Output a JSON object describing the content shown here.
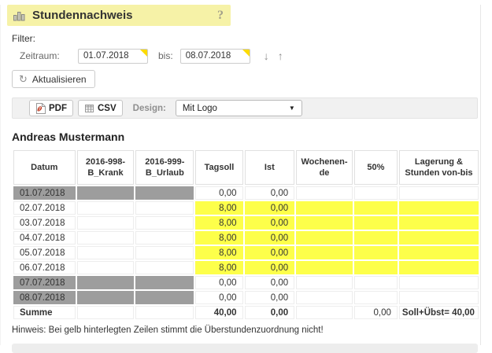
{
  "header": {
    "title": "Stundennachweis"
  },
  "icons": {
    "help": "?",
    "refresh": "↻",
    "period_back": "↓",
    "period_forward": "↑",
    "dropdown_caret": "▼"
  },
  "filter": {
    "label": "Filter:",
    "zeitraum_label": "Zeitraum:",
    "from_value": "01.07.2018",
    "bis_label": "bis:",
    "to_value": "08.07.2018",
    "refresh_label": "Aktualisieren"
  },
  "toolbar": {
    "pdf_label": "PDF",
    "csv_label": "CSV",
    "design_label": "Design:",
    "design_value": "Mit Logo"
  },
  "employee_name": "Andreas Mustermann",
  "table": {
    "columns": [
      "Datum",
      "2016-998-B_Krank",
      "2016-999-B_Urlaub",
      "Tagsoll",
      "Ist",
      "Wochenen-de",
      "50%",
      "Lagerung & Stunden von-bis"
    ],
    "rows": [
      {
        "datum": "01.07.2018",
        "krank": "",
        "urlaub": "",
        "tagsoll": "0,00",
        "ist": "0,00",
        "wochenende": "",
        "fifty": "",
        "lagerung": "",
        "weekend": true,
        "highlight": false
      },
      {
        "datum": "02.07.2018",
        "krank": "",
        "urlaub": "",
        "tagsoll": "8,00",
        "ist": "0,00",
        "wochenende": "",
        "fifty": "",
        "lagerung": "",
        "weekend": false,
        "highlight": true
      },
      {
        "datum": "03.07.2018",
        "krank": "",
        "urlaub": "",
        "tagsoll": "8,00",
        "ist": "0,00",
        "wochenende": "",
        "fifty": "",
        "lagerung": "",
        "weekend": false,
        "highlight": true
      },
      {
        "datum": "04.07.2018",
        "krank": "",
        "urlaub": "",
        "tagsoll": "8,00",
        "ist": "0,00",
        "wochenende": "",
        "fifty": "",
        "lagerung": "",
        "weekend": false,
        "highlight": true
      },
      {
        "datum": "05.07.2018",
        "krank": "",
        "urlaub": "",
        "tagsoll": "8,00",
        "ist": "0,00",
        "wochenende": "",
        "fifty": "",
        "lagerung": "",
        "weekend": false,
        "highlight": true
      },
      {
        "datum": "06.07.2018",
        "krank": "",
        "urlaub": "",
        "tagsoll": "8,00",
        "ist": "0,00",
        "wochenende": "",
        "fifty": "",
        "lagerung": "",
        "weekend": false,
        "highlight": true
      },
      {
        "datum": "07.07.2018",
        "krank": "",
        "urlaub": "",
        "tagsoll": "0,00",
        "ist": "0,00",
        "wochenende": "",
        "fifty": "",
        "lagerung": "",
        "weekend": true,
        "highlight": false
      },
      {
        "datum": "08.07.2018",
        "krank": "",
        "urlaub": "",
        "tagsoll": "0,00",
        "ist": "0,00",
        "wochenende": "",
        "fifty": "",
        "lagerung": "",
        "weekend": true,
        "highlight": false
      }
    ],
    "summary": {
      "label": "Summe",
      "tagsoll": "40,00",
      "ist": "0,00",
      "fifty": "0,00",
      "lagerung": "Soll+Übst= 40,00"
    }
  },
  "note": "Hinweis: Bei gelb hinterlegten Zeilen stimmt die Überstundenzuordnung nicht!",
  "colors": {
    "title_bar_yellow": "#f6f2a7",
    "highlight_yellow": "#fdff4a",
    "weekend_gray": "#9d9d9d",
    "input_corner_yellow": "#fcdb00"
  }
}
